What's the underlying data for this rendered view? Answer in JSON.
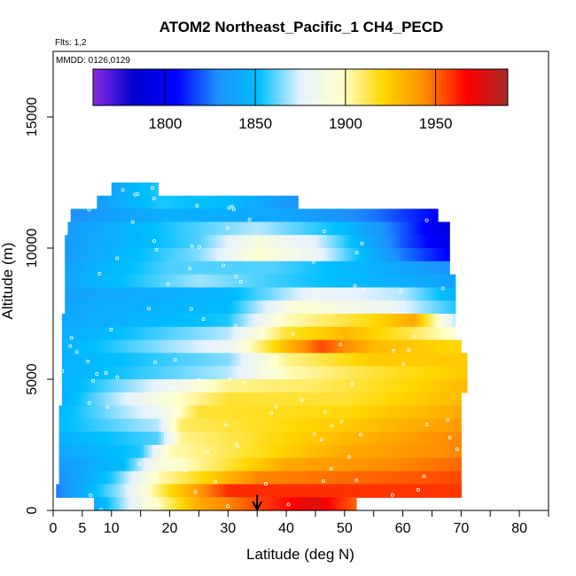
{
  "chart_data": {
    "type": "heatmap",
    "title": "ATOM2 Northeast_Pacific_1 CH4_PECD",
    "annotations": [
      "Flts: 1,2",
      "MMDD: 0126,0129"
    ],
    "xlabel": "Latitude (deg N)",
    "ylabel": "Altitude (m)",
    "xlim": [
      0,
      85
    ],
    "ylim": [
      0,
      17500
    ],
    "x_ticks": [
      0,
      5,
      10,
      20,
      30,
      40,
      50,
      60,
      70,
      80
    ],
    "x_minor_ticks": [
      15,
      25,
      35,
      45,
      55,
      65,
      75,
      85
    ],
    "y_ticks": [
      0,
      5000,
      10000,
      15000
    ],
    "colorbar": {
      "ticks": [
        1800,
        1850,
        1900,
        1950
      ],
      "range": [
        1760,
        1990
      ],
      "colors": [
        "#8a2be2",
        "#0000cd",
        "#0000ff",
        "#1e90ff",
        "#00bfff",
        "#e6f2ff",
        "#ffffcc",
        "#ffd700",
        "#ff8c00",
        "#ff0000",
        "#a52a2a"
      ],
      "position": "top"
    },
    "marker": {
      "x": 35,
      "label": "arrow"
    },
    "bands": [
      {
        "z0": 12000,
        "z1": 12500,
        "xmin": 10,
        "xmax": 18,
        "stops": [
          [
            10,
            1840
          ],
          [
            18,
            1855
          ]
        ]
      },
      {
        "z0": 11500,
        "z1": 12000,
        "xmin": 7.5,
        "xmax": 42,
        "stops": [
          [
            7.5,
            1835
          ],
          [
            18,
            1855
          ],
          [
            30,
            1850
          ],
          [
            42,
            1830
          ]
        ]
      },
      {
        "z0": 11000,
        "z1": 11500,
        "xmin": 3,
        "xmax": 66,
        "stops": [
          [
            3,
            1830
          ],
          [
            20,
            1845
          ],
          [
            40,
            1840
          ],
          [
            55,
            1825
          ],
          [
            66,
            1805
          ]
        ]
      },
      {
        "z0": 10500,
        "z1": 11000,
        "xmin": 2.5,
        "xmax": 68,
        "stops": [
          [
            2.5,
            1835
          ],
          [
            20,
            1855
          ],
          [
            35,
            1870
          ],
          [
            50,
            1850
          ],
          [
            60,
            1820
          ],
          [
            68,
            1790
          ]
        ]
      },
      {
        "z0": 10000,
        "z1": 10500,
        "xmin": 2,
        "xmax": 68,
        "stops": [
          [
            2,
            1835
          ],
          [
            25,
            1860
          ],
          [
            35,
            1890
          ],
          [
            45,
            1875
          ],
          [
            60,
            1820
          ],
          [
            68,
            1795
          ]
        ]
      },
      {
        "z0": 9500,
        "z1": 10000,
        "xmin": 2,
        "xmax": 68,
        "stops": [
          [
            2,
            1835
          ],
          [
            25,
            1865
          ],
          [
            35,
            1895
          ],
          [
            45,
            1880
          ],
          [
            60,
            1825
          ],
          [
            68,
            1805
          ]
        ]
      },
      {
        "z0": 9000,
        "z1": 9500,
        "xmin": 2,
        "xmax": 68,
        "stops": [
          [
            2,
            1838
          ],
          [
            20,
            1860
          ],
          [
            38,
            1860
          ],
          [
            55,
            1845
          ],
          [
            68,
            1830
          ]
        ]
      },
      {
        "z0": 8500,
        "z1": 9000,
        "xmin": 2,
        "xmax": 69,
        "stops": [
          [
            2,
            1840
          ],
          [
            25,
            1868
          ],
          [
            35,
            1860
          ],
          [
            50,
            1850
          ],
          [
            69,
            1838
          ]
        ]
      },
      {
        "z0": 8000,
        "z1": 8500,
        "xmin": 2,
        "xmax": 69,
        "stops": [
          [
            2,
            1838
          ],
          [
            30,
            1848
          ],
          [
            45,
            1880
          ],
          [
            60,
            1870
          ],
          [
            69,
            1845
          ]
        ]
      },
      {
        "z0": 7500,
        "z1": 8000,
        "xmin": 2,
        "xmax": 69,
        "stops": [
          [
            2,
            1840
          ],
          [
            30,
            1850
          ],
          [
            42,
            1895
          ],
          [
            58,
            1880
          ],
          [
            69,
            1855
          ]
        ]
      },
      {
        "z0": 7000,
        "z1": 7500,
        "xmin": 1.5,
        "xmax": 69,
        "stops": [
          [
            1.5,
            1840
          ],
          [
            30,
            1855
          ],
          [
            40,
            1900
          ],
          [
            55,
            1920
          ],
          [
            62,
            1935
          ],
          [
            69,
            1870
          ]
        ]
      },
      {
        "z0": 6500,
        "z1": 7000,
        "xmin": 1.5,
        "xmax": 69,
        "stops": [
          [
            1.5,
            1842
          ],
          [
            30,
            1870
          ],
          [
            40,
            1915
          ],
          [
            50,
            1930
          ],
          [
            60,
            1915
          ],
          [
            69,
            1895
          ]
        ]
      },
      {
        "z0": 6000,
        "z1": 6500,
        "xmin": 1.5,
        "xmax": 70,
        "stops": [
          [
            1.5,
            1845
          ],
          [
            30,
            1880
          ],
          [
            40,
            1930
          ],
          [
            46,
            1955
          ],
          [
            55,
            1930
          ],
          [
            70,
            1920
          ]
        ]
      },
      {
        "z0": 5500,
        "z1": 6000,
        "xmin": 1.5,
        "xmax": 71,
        "stops": [
          [
            1.5,
            1845
          ],
          [
            30,
            1865
          ],
          [
            40,
            1905
          ],
          [
            55,
            1925
          ],
          [
            71,
            1925
          ]
        ]
      },
      {
        "z0": 5000,
        "z1": 5500,
        "xmin": 1.5,
        "xmax": 71,
        "stops": [
          [
            1.5,
            1845
          ],
          [
            30,
            1870
          ],
          [
            40,
            1900
          ],
          [
            55,
            1915
          ],
          [
            71,
            1925
          ]
        ]
      },
      {
        "z0": 4500,
        "z1": 5000,
        "xmin": 1.5,
        "xmax": 71,
        "stops": [
          [
            1.5,
            1845
          ],
          [
            20,
            1880
          ],
          [
            30,
            1905
          ],
          [
            45,
            1910
          ],
          [
            60,
            1920
          ],
          [
            71,
            1930
          ]
        ]
      },
      {
        "z0": 4000,
        "z1": 4500,
        "xmin": 1.5,
        "xmax": 70,
        "stops": [
          [
            1.5,
            1845
          ],
          [
            20,
            1895
          ],
          [
            30,
            1915
          ],
          [
            50,
            1915
          ],
          [
            70,
            1930
          ]
        ]
      },
      {
        "z0": 3500,
        "z1": 4000,
        "xmin": 1,
        "xmax": 70,
        "stops": [
          [
            1,
            1848
          ],
          [
            18,
            1880
          ],
          [
            25,
            1915
          ],
          [
            50,
            1920
          ],
          [
            70,
            1935
          ]
        ]
      },
      {
        "z0": 3000,
        "z1": 3500,
        "xmin": 1,
        "xmax": 70,
        "stops": [
          [
            1,
            1850
          ],
          [
            18,
            1870
          ],
          [
            22,
            1910
          ],
          [
            50,
            1925
          ],
          [
            70,
            1940
          ]
        ]
      },
      {
        "z0": 2500,
        "z1": 3000,
        "xmin": 1,
        "xmax": 70,
        "stops": [
          [
            1,
            1845
          ],
          [
            18,
            1860
          ],
          [
            22,
            1905
          ],
          [
            50,
            1930
          ],
          [
            70,
            1945
          ]
        ]
      },
      {
        "z0": 2000,
        "z1": 2500,
        "xmin": 1,
        "xmax": 70,
        "stops": [
          [
            1,
            1840
          ],
          [
            15,
            1855
          ],
          [
            20,
            1900
          ],
          [
            50,
            1935
          ],
          [
            70,
            1945
          ]
        ]
      },
      {
        "z0": 1500,
        "z1": 2000,
        "xmin": 1,
        "xmax": 70,
        "stops": [
          [
            1,
            1835
          ],
          [
            12,
            1850
          ],
          [
            18,
            1890
          ],
          [
            40,
            1935
          ],
          [
            70,
            1950
          ]
        ]
      },
      {
        "z0": 1000,
        "z1": 1500,
        "xmin": 1,
        "xmax": 70,
        "stops": [
          [
            1,
            1830
          ],
          [
            10,
            1855
          ],
          [
            18,
            1900
          ],
          [
            35,
            1945
          ],
          [
            70,
            1955
          ]
        ]
      },
      {
        "z0": 500,
        "z1": 1000,
        "xmin": 0.5,
        "xmax": 70,
        "stops": [
          [
            0.5,
            1825
          ],
          [
            12,
            1870
          ],
          [
            20,
            1920
          ],
          [
            30,
            1960
          ],
          [
            70,
            1958
          ]
        ]
      },
      {
        "z0": 0,
        "z1": 500,
        "xmin": 7,
        "xmax": 52,
        "stops": [
          [
            7,
            1840
          ],
          [
            15,
            1885
          ],
          [
            25,
            1935
          ],
          [
            35,
            1955
          ],
          [
            45,
            1975
          ],
          [
            52,
            1950
          ]
        ]
      }
    ]
  }
}
